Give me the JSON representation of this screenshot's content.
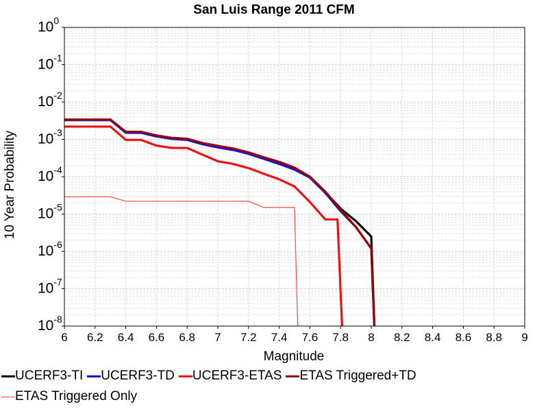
{
  "chart_data": {
    "type": "line",
    "title": "San Luis Range 2011 CFM",
    "xlabel": "Magnitude",
    "ylabel": "10 Year Probability",
    "xlim": [
      6,
      9
    ],
    "ylim": [
      1e-08,
      1
    ],
    "yscale": "log",
    "grid": true,
    "legend_position": "bottom",
    "xticks": [
      "6",
      "6.2",
      "6.4",
      "6.6",
      "6.8",
      "7",
      "7.2",
      "7.4",
      "7.6",
      "7.8",
      "8",
      "8.2",
      "8.4",
      "8.6",
      "8.8",
      "9"
    ],
    "yticks": [
      {
        "base": "10",
        "exp": "-8"
      },
      {
        "base": "10",
        "exp": "-7"
      },
      {
        "base": "10",
        "exp": "-6"
      },
      {
        "base": "10",
        "exp": "-5"
      },
      {
        "base": "10",
        "exp": "-4"
      },
      {
        "base": "10",
        "exp": "-3"
      },
      {
        "base": "10",
        "exp": "-2"
      },
      {
        "base": "10",
        "exp": "-1"
      },
      {
        "base": "10",
        "exp": "0"
      }
    ],
    "series": [
      {
        "name": "UCERF3-TI",
        "color": "#000000",
        "x": [
          6.0,
          6.1,
          6.2,
          6.3,
          6.4,
          6.5,
          6.6,
          6.7,
          6.8,
          6.9,
          7.0,
          7.1,
          7.2,
          7.3,
          7.4,
          7.5,
          7.6,
          7.7,
          7.8,
          7.9,
          8.0,
          8.02
        ],
        "y": [
          0.0033,
          0.0033,
          0.0033,
          0.0033,
          0.00155,
          0.00155,
          0.00125,
          0.00108,
          0.00102,
          0.00078,
          0.00065,
          0.00056,
          0.00044,
          0.00032,
          0.00024,
          0.00017,
          0.0001,
          3.9e-05,
          1.4e-05,
          6.5e-06,
          2.5e-06,
          1e-08
        ]
      },
      {
        "name": "UCERF3-TD",
        "color": "#1111dd",
        "x": [
          6.0,
          6.1,
          6.2,
          6.3,
          6.4,
          6.5,
          6.6,
          6.7,
          6.8,
          6.9,
          7.0,
          7.1,
          7.2,
          7.3,
          7.4,
          7.5,
          7.6,
          7.7,
          7.8,
          7.9,
          8.0,
          8.02
        ],
        "y": [
          0.0033,
          0.0033,
          0.0033,
          0.0033,
          0.0015,
          0.0015,
          0.0012,
          0.00103,
          0.00097,
          0.00074,
          0.00061,
          0.00052,
          0.00041,
          0.0003,
          0.00022,
          0.000155,
          9.5e-05,
          3.7e-05,
          1.2e-05,
          4.5e-06,
          1.2e-06,
          1e-08
        ]
      },
      {
        "name": "UCERF3-ETAS",
        "color": "#ee1111",
        "x": [
          6.0,
          6.1,
          6.2,
          6.3,
          6.4,
          6.5,
          6.6,
          6.7,
          6.8,
          6.9,
          7.0,
          7.1,
          7.2,
          7.3,
          7.4,
          7.5,
          7.6,
          7.7,
          7.78,
          7.81
        ],
        "y": [
          0.0022,
          0.0022,
          0.0022,
          0.0022,
          0.00097,
          0.00097,
          0.00068,
          0.00059,
          0.00059,
          0.00039,
          0.00026,
          0.00022,
          0.00017,
          0.00012,
          8.5e-05,
          5.5e-05,
          2.1e-05,
          7.2e-06,
          7.2e-06,
          1e-08
        ]
      },
      {
        "name": "ETAS Triggered+TD",
        "color": "#990000",
        "x": [
          6.0,
          6.1,
          6.2,
          6.3,
          6.4,
          6.5,
          6.6,
          6.7,
          6.8,
          6.9,
          7.0,
          7.1,
          7.2,
          7.3,
          7.4,
          7.5,
          7.6,
          7.7,
          7.8,
          7.9,
          8.0,
          8.02
        ],
        "y": [
          0.0034,
          0.0034,
          0.0034,
          0.0034,
          0.0016,
          0.0016,
          0.00128,
          0.0011,
          0.00104,
          0.0008,
          0.00067,
          0.00057,
          0.00045,
          0.00033,
          0.00025,
          0.000175,
          0.0001,
          4e-05,
          1.3e-05,
          4.5e-06,
          1.2e-06,
          1e-08
        ]
      },
      {
        "name": "ETAS Triggered Only",
        "color": "#ff4444",
        "x": [
          6.0,
          6.1,
          6.2,
          6.3,
          6.4,
          6.5,
          6.6,
          6.7,
          6.8,
          6.9,
          7.0,
          7.1,
          7.2,
          7.3,
          7.4,
          7.5,
          7.52
        ],
        "y": [
          2.9e-05,
          2.9e-05,
          2.9e-05,
          2.9e-05,
          2.2e-05,
          2.2e-05,
          2.2e-05,
          2.2e-05,
          2.2e-05,
          2.2e-05,
          2.2e-05,
          2.2e-05,
          2.2e-05,
          1.5e-05,
          1.5e-05,
          1.5e-05,
          1e-08
        ]
      }
    ]
  }
}
